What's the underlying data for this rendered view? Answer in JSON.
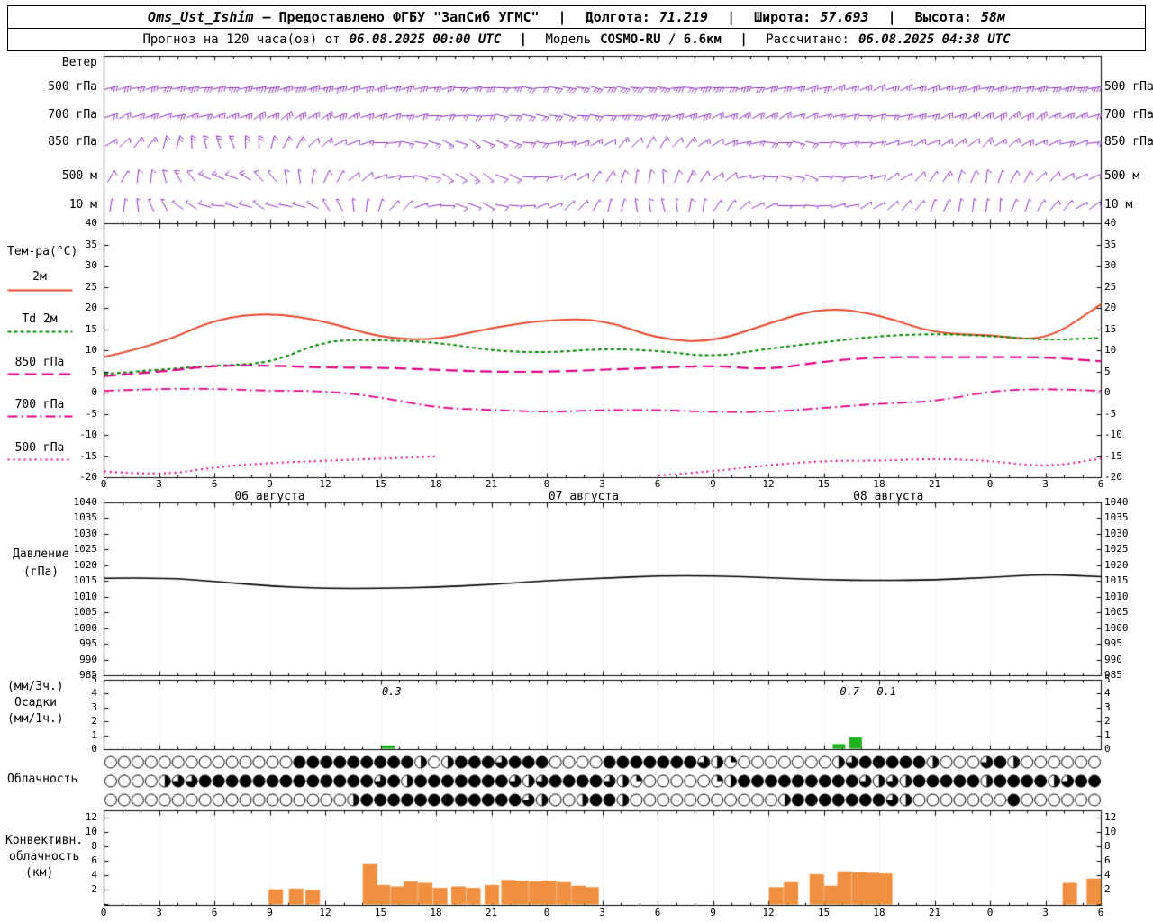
{
  "header": {
    "station": "Oms_Ust_Ishim",
    "provider": "– Предоставлено ФГБУ \"ЗапСиб УГМС\"",
    "sep": "|",
    "lon_label": "Долгота:",
    "lon": "71.219",
    "lat_label": "Широта:",
    "lat": "57.693",
    "alt_label": "Высота:",
    "alt": "58м",
    "line2_prefix": "Прогноз на 120 часа(ов) от",
    "run_time": "06.08.2025 00:00 UTC",
    "model_label": "Модель",
    "model": "COSMO-RU / 6.6км",
    "calc_label": "Рассчитано:",
    "calc_time": "06.08.2025 04:38 UTC"
  },
  "panels": {
    "wind": {
      "title": "Ветер"
    },
    "temp": {
      "title": "Тем-ра(°C)"
    },
    "pressure": {
      "l1": "Давление",
      "l2": "(гПа)"
    },
    "precip": {
      "l1": "(мм/3ч.)",
      "l2": "Осадки",
      "l3": "(мм/1ч.)"
    },
    "cloud": {
      "title": "Облачность"
    },
    "conv": {
      "l1": "Конвективн.",
      "l2": "облачность",
      "l3": "(км)"
    }
  },
  "colors": {
    "barb": "#8a2fc0",
    "temp_2m": "#e8472b",
    "dewpoint": "#008800",
    "upper_temp": "#e00085",
    "pressure": "#000000",
    "precip": "#1db31d",
    "convective": "#ef8f3f",
    "grid": "#c9c9c9",
    "border": "#000000"
  },
  "axis": {
    "hours": [
      0,
      3,
      6,
      9,
      12,
      15,
      18,
      21,
      24,
      27,
      30,
      33,
      36,
      39,
      42,
      45,
      48,
      51,
      54
    ],
    "dates": [
      {
        "label": "06 августа",
        "h": 9
      },
      {
        "label": "07 августа",
        "h": 26
      },
      {
        "label": "08 августа",
        "h": 42.5
      }
    ]
  },
  "chart_data": {
    "x_hours": [
      0,
      3,
      6,
      9,
      12,
      15,
      18,
      21,
      24,
      27,
      30,
      33,
      36,
      39,
      42,
      45,
      48,
      51,
      54
    ],
    "wind": {
      "type": "wind-barbs",
      "levels": [
        {
          "name": "500 гПа",
          "angles": [
            -15,
            -12,
            -10,
            -8,
            -10,
            -12,
            -15,
            -18,
            -15,
            -10,
            -5,
            0,
            5,
            10,
            8,
            5,
            0,
            -5,
            -10,
            -15,
            -20,
            -25,
            -22,
            -18,
            -15,
            -12,
            -10,
            -8
          ],
          "speeds": [
            28,
            30,
            32,
            35,
            38,
            40,
            38,
            35,
            32,
            30,
            28,
            26,
            28,
            30,
            33,
            36,
            38,
            36,
            33,
            30,
            28,
            26,
            28,
            30,
            32,
            34,
            36,
            38
          ]
        },
        {
          "name": "700 гПа",
          "angles": [
            -25,
            -20,
            -15,
            -20,
            -28,
            -35,
            -30,
            -22,
            -12,
            -5,
            0,
            8,
            12,
            8,
            0,
            -8,
            -18,
            -25,
            -30,
            -22,
            -12,
            -5,
            -12,
            -22,
            -30,
            -34,
            -28,
            -22
          ],
          "speeds": [
            22,
            24,
            26,
            28,
            30,
            32,
            30,
            28,
            25,
            22,
            20,
            22,
            24,
            26,
            28,
            30,
            28,
            26,
            24,
            22,
            20,
            22,
            24,
            26,
            28,
            30,
            28,
            26
          ]
        },
        {
          "name": "850 гПа",
          "angles": [
            -35,
            -55,
            -85,
            -115,
            -90,
            -60,
            -35,
            -15,
            5,
            20,
            28,
            18,
            0,
            -20,
            -42,
            -60,
            -45,
            -22,
            0,
            12,
            2,
            -10,
            -22,
            -32,
            -42,
            -32,
            -20,
            -10
          ],
          "speeds": [
            15,
            17,
            20,
            22,
            20,
            18,
            16,
            15,
            14,
            15,
            17,
            19,
            20,
            18,
            16,
            15,
            16,
            18,
            20,
            19,
            17,
            15,
            14,
            16,
            18,
            20,
            18,
            16
          ]
        },
        {
          "name": "500 м",
          "angles": [
            -55,
            -85,
            -125,
            -165,
            -140,
            -100,
            -65,
            -35,
            -5,
            25,
            40,
            22,
            -8,
            -40,
            -70,
            -90,
            -62,
            -32,
            -2,
            20,
            2,
            -18,
            -40,
            -62,
            -80,
            -60,
            -40,
            -20
          ],
          "speeds": [
            10,
            12,
            14,
            15,
            13,
            11,
            10,
            9,
            10,
            12,
            13,
            12,
            10,
            9,
            10,
            12,
            13,
            12,
            10,
            9,
            10,
            11,
            12,
            13,
            12,
            11,
            10,
            10
          ]
        },
        {
          "name": "10 м",
          "angles": [
            -75,
            -105,
            -145,
            -175,
            -150,
            -175,
            -125,
            -85,
            -45,
            -5,
            28,
            8,
            -22,
            -52,
            -82,
            -108,
            -82,
            -52,
            -22,
            8,
            -12,
            -32,
            -52,
            -72,
            -88,
            -70,
            -50,
            -30
          ],
          "speeds": [
            6,
            7,
            8,
            9,
            8,
            7,
            6,
            6,
            7,
            8,
            9,
            8,
            7,
            6,
            7,
            8,
            8,
            7,
            6,
            6,
            7,
            8,
            8,
            7,
            6,
            7,
            8,
            8
          ]
        }
      ]
    },
    "temperature": {
      "type": "line",
      "ylim": [
        -20,
        40
      ],
      "ytick_step": 5,
      "series": [
        {
          "name": "2м",
          "color": "#e8472b",
          "dash": [],
          "width": 2,
          "values": [
            8.5,
            11.5,
            17.5,
            19.0,
            17.0,
            13.0,
            12.5,
            15.5,
            17.3,
            17.5,
            12.7,
            12.0,
            16.5,
            20.3,
            18.5,
            14.0,
            13.8,
            12.2,
            21.0
          ]
        },
        {
          "name": "Td 2м",
          "color": "#008800",
          "dash": [
            4,
            3
          ],
          "width": 2,
          "values": [
            4.5,
            5.5,
            6.5,
            7.0,
            12.5,
            12.5,
            12.0,
            10.0,
            9.5,
            10.5,
            10.0,
            8.5,
            10.5,
            12.0,
            13.5,
            14.0,
            13.5,
            12.5,
            13.0
          ]
        },
        {
          "name": "850 гПа",
          "color": "#e00085",
          "dash": [
            13,
            6
          ],
          "width": 2.2,
          "values": [
            4.0,
            5.0,
            6.5,
            6.5,
            6.0,
            6.0,
            5.5,
            5.0,
            5.0,
            5.5,
            6.0,
            6.5,
            5.5,
            7.5,
            8.5,
            8.5,
            8.5,
            8.5,
            7.5
          ]
        },
        {
          "name": "700 гПа",
          "color": "#e00085",
          "dash": [
            11,
            4,
            2,
            4
          ],
          "width": 1.8,
          "values": [
            0.5,
            1.0,
            1.0,
            0.5,
            0.5,
            -1.0,
            -3.5,
            -4.0,
            -4.5,
            -4.0,
            -4.0,
            -4.5,
            -4.5,
            -3.5,
            -2.5,
            -2.0,
            0.5,
            1.0,
            0.5
          ]
        },
        {
          "name": "500 гПа",
          "color": "#e00085",
          "dash": [
            2,
            4
          ],
          "width": 2,
          "values": [
            -18.5,
            -19.5,
            -17.5,
            -16.5,
            -16.0,
            -15.5,
            -15.0,
            null,
            null,
            null,
            -19.5,
            -18.5,
            -17.0,
            -16.0,
            -16.0,
            -15.5,
            -16.0,
            -17.5,
            -15.5
          ]
        }
      ]
    },
    "pressure": {
      "type": "line",
      "ylim": [
        985,
        1040
      ],
      "ytick_step": 5,
      "color": "#000000",
      "values": [
        1016,
        1016.3,
        1015,
        1013.5,
        1012.8,
        1012.8,
        1013.2,
        1014,
        1015.3,
        1016,
        1016.8,
        1016.8,
        1016.2,
        1015.5,
        1015.3,
        1015.5,
        1016.3,
        1017.3,
        1016.5
      ]
    },
    "precipitation": {
      "type": "bar",
      "ylim": [
        0,
        5
      ],
      "color": "#1db31d",
      "bars": [
        {
          "h": 15.4,
          "v": 0.3
        },
        {
          "h": 39.8,
          "v": 0.4
        },
        {
          "h": 40.7,
          "v": 0.9
        }
      ],
      "sum_labels": [
        {
          "h": 15.6,
          "text": "0.3"
        },
        {
          "h": 40.4,
          "text": "0.7"
        },
        {
          "h": 42.4,
          "text": "0.1"
        }
      ]
    },
    "cloudiness": {
      "type": "symbols",
      "rows_octas": [
        "00000000000000888888888404888688800008888888642000000046888884000684000000",
        "00004668888888888888684888888864688886420000024888888888646488888488884688",
        "00000000000000000048888888888886400488400000000000488888886400000008000000"
      ]
    },
    "convective": {
      "type": "bar",
      "ylim": [
        0,
        13
      ],
      "ytick_step": 2,
      "color": "#ef8f3f",
      "bars": [
        {
          "h": 9.3,
          "km": 2.1
        },
        {
          "h": 10.4,
          "km": 2.2
        },
        {
          "h": 11.3,
          "km": 2.0
        },
        {
          "h": 14.4,
          "km": 5.6
        },
        {
          "h": 15.1,
          "km": 2.7
        },
        {
          "h": 15.9,
          "km": 2.5
        },
        {
          "h": 16.6,
          "km": 3.2
        },
        {
          "h": 17.4,
          "km": 3.0
        },
        {
          "h": 18.2,
          "km": 2.3
        },
        {
          "h": 19.2,
          "km": 2.5
        },
        {
          "h": 20.0,
          "km": 2.3
        },
        {
          "h": 21.0,
          "km": 2.7
        },
        {
          "h": 21.9,
          "km": 3.4
        },
        {
          "h": 22.6,
          "km": 3.3
        },
        {
          "h": 23.4,
          "km": 3.2
        },
        {
          "h": 24.1,
          "km": 3.3
        },
        {
          "h": 24.9,
          "km": 3.1
        },
        {
          "h": 25.7,
          "km": 2.6
        },
        {
          "h": 26.4,
          "km": 2.4
        },
        {
          "h": 36.4,
          "km": 2.4
        },
        {
          "h": 37.2,
          "km": 3.1
        },
        {
          "h": 38.6,
          "km": 4.2
        },
        {
          "h": 39.4,
          "km": 2.6
        },
        {
          "h": 40.1,
          "km": 4.6
        },
        {
          "h": 40.9,
          "km": 4.5
        },
        {
          "h": 41.6,
          "km": 4.4
        },
        {
          "h": 42.3,
          "km": 4.3
        },
        {
          "h": 52.3,
          "km": 3.0
        },
        {
          "h": 53.6,
          "km": 3.6
        }
      ]
    }
  }
}
